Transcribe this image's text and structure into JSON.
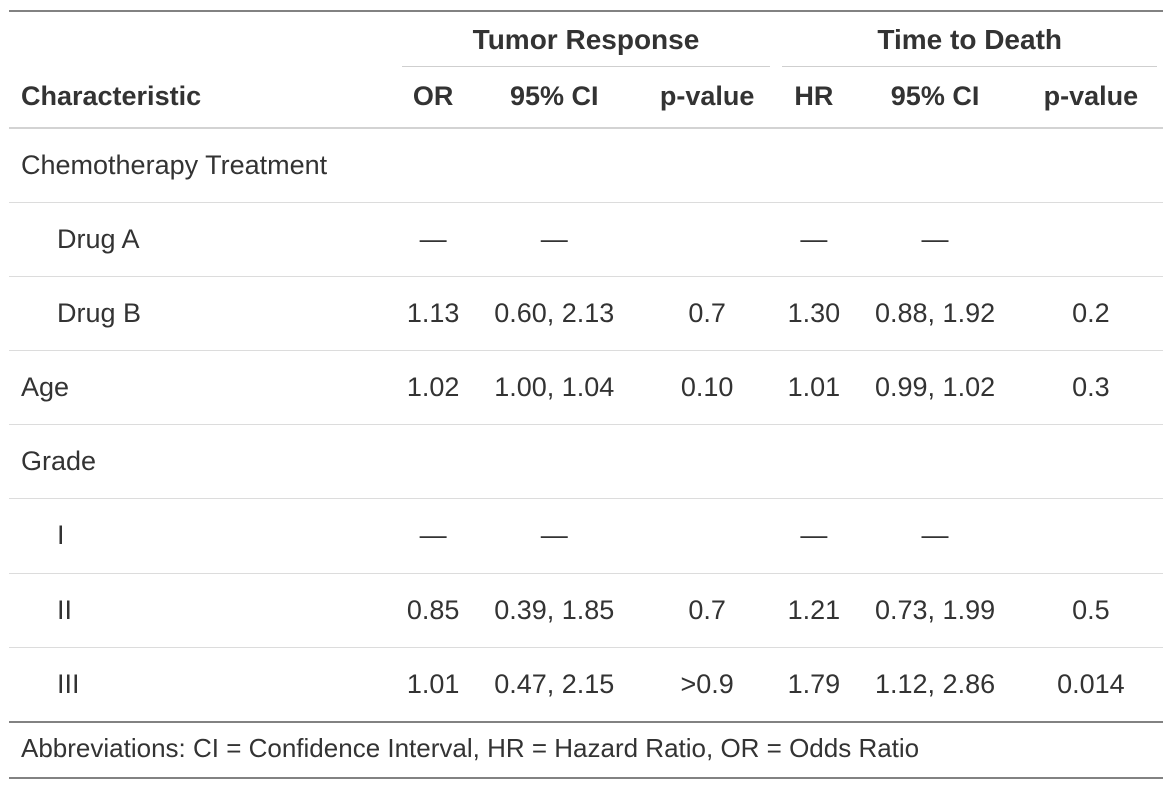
{
  "chart_data": {
    "type": "table",
    "spanners": [
      {
        "label": "Tumor Response",
        "columns": [
          "OR",
          "95% CI",
          "p-value"
        ]
      },
      {
        "label": "Time to Death",
        "columns": [
          "HR",
          "95% CI",
          "p-value"
        ]
      }
    ],
    "columns": [
      "Characteristic",
      "OR",
      "95% CI",
      "p-value",
      "HR",
      "95% CI",
      "p-value"
    ],
    "rows": [
      {
        "label": "Chemotherapy Treatment",
        "indent": false,
        "cells": [
          "",
          "",
          "",
          "",
          "",
          ""
        ]
      },
      {
        "label": "Drug A",
        "indent": true,
        "cells": [
          "—",
          "—",
          "",
          "—",
          "—",
          ""
        ]
      },
      {
        "label": "Drug B",
        "indent": true,
        "cells": [
          "1.13",
          "0.60, 2.13",
          "0.7",
          "1.30",
          "0.88, 1.92",
          "0.2"
        ]
      },
      {
        "label": "Age",
        "indent": false,
        "cells": [
          "1.02",
          "1.00, 1.04",
          "0.10",
          "1.01",
          "0.99, 1.02",
          "0.3"
        ]
      },
      {
        "label": "Grade",
        "indent": false,
        "cells": [
          "",
          "",
          "",
          "",
          "",
          ""
        ]
      },
      {
        "label": "I",
        "indent": true,
        "cells": [
          "—",
          "—",
          "",
          "—",
          "—",
          ""
        ]
      },
      {
        "label": "II",
        "indent": true,
        "cells": [
          "0.85",
          "0.39, 1.85",
          "0.7",
          "1.21",
          "0.73, 1.99",
          "0.5"
        ]
      },
      {
        "label": "III",
        "indent": true,
        "cells": [
          "1.01",
          "0.47, 2.15",
          ">0.9",
          "1.79",
          "1.12, 2.86",
          "0.014"
        ]
      }
    ],
    "footer": "Abbreviations: CI = Confidence Interval, HR = Hazard Ratio, OR = Odds Ratio"
  }
}
